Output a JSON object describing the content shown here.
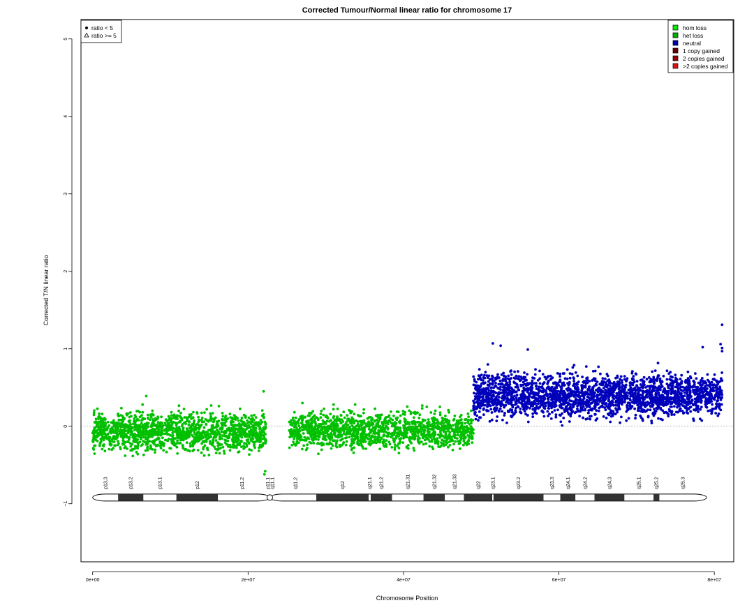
{
  "chart_data": {
    "type": "scatter",
    "title": "Corrected Tumour/Normal linear ratio for chromosome  17",
    "xlabel": "Chromosome Position",
    "ylabel": "Corrected T/N linear ratio",
    "xlim": [
      -1500000,
      82500000
    ],
    "ylim": [
      -1.75,
      5.25
    ],
    "x_ticks": [
      0,
      20000000,
      40000000,
      60000000,
      80000000
    ],
    "x_tick_labels": [
      "0e+00",
      "2e+07",
      "4e+07",
      "6e+07",
      "8e+07"
    ],
    "y_ticks": [
      -1,
      0,
      1,
      2,
      3,
      4,
      5
    ],
    "y_tick_labels": [
      "−1",
      "0",
      "1",
      "2",
      "3",
      "4",
      "5"
    ],
    "reference_line_y": 0,
    "shape_legend": {
      "placement": "top-left",
      "items": [
        {
          "label": "ratio < 5",
          "shape": "filled-circle"
        },
        {
          "label": "ratio >= 5",
          "shape": "open-triangle"
        }
      ]
    },
    "color_legend": {
      "placement": "top-right",
      "items": [
        {
          "label": "hom loss",
          "color": "#00ee00"
        },
        {
          "label": "het loss",
          "color": "#00b000"
        },
        {
          "label": "neutral",
          "color": "#0000aa"
        },
        {
          "label": "1 copy gained",
          "color": "#6b0000"
        },
        {
          "label": "2 copies gained",
          "color": "#990000"
        },
        {
          "label": ">2 copies gained",
          "color": "#dd1111"
        }
      ]
    },
    "series": [
      {
        "name": "het loss",
        "color": "#00c000",
        "segments": [
          {
            "x_range": [
              0,
              22300000
            ],
            "median": -0.07,
            "spread": 0.14,
            "n": 1500
          },
          {
            "x_range": [
              25300000,
              49000000
            ],
            "median": -0.05,
            "spread": 0.13,
            "n": 1450
          }
        ],
        "outliers": [
          [
            6900000,
            0.39
          ],
          [
            22000000,
            0.45
          ],
          [
            22100000,
            -0.62
          ],
          [
            22200000,
            -0.58
          ],
          [
            27000000,
            0.3
          ],
          [
            31000000,
            0.28
          ],
          [
            43000000,
            0.25
          ]
        ]
      },
      {
        "name": "neutral",
        "color": "#0000bb",
        "segments": [
          {
            "x_range": [
              49000000,
              81000000
            ],
            "median": 0.4,
            "spread": 0.16,
            "n": 2400
          }
        ],
        "outliers": [
          [
            51500000,
            1.07
          ],
          [
            52500000,
            1.04
          ],
          [
            56000000,
            0.99
          ],
          [
            78500000,
            1.02
          ],
          [
            81000000,
            1.31
          ],
          [
            80800000,
            1.06
          ],
          [
            81000000,
            1.01
          ],
          [
            81000000,
            0.97
          ]
        ]
      }
    ],
    "ideogram": {
      "y": -0.92,
      "bands": [
        {
          "name": "p13.3",
          "start": 0,
          "end": 3300000,
          "stain": "gneg"
        },
        {
          "name": "p13.2",
          "start": 3300000,
          "end": 6500000,
          "stain": "gpos"
        },
        {
          "name": "p13.1",
          "start": 6500000,
          "end": 10800000,
          "stain": "gneg"
        },
        {
          "name": "p12",
          "start": 10800000,
          "end": 16100000,
          "stain": "gpos"
        },
        {
          "name": "p11.2",
          "start": 16100000,
          "end": 22300000,
          "stain": "gneg"
        },
        {
          "name": "p11.1",
          "start": 22300000,
          "end": 22800000,
          "stain": "acen"
        },
        {
          "name": "q11.1",
          "start": 22800000,
          "end": 23400000,
          "stain": "acen"
        },
        {
          "name": "q11.2",
          "start": 23400000,
          "end": 28800000,
          "stain": "gneg"
        },
        {
          "name": "q12",
          "start": 28800000,
          "end": 35500000,
          "stain": "gpos"
        },
        {
          "name": "q21.1",
          "start": 35500000,
          "end": 35800000,
          "stain": "gneg"
        },
        {
          "name": "q21.2",
          "start": 35800000,
          "end": 38500000,
          "stain": "gpos"
        },
        {
          "name": "q21.31",
          "start": 38500000,
          "end": 42600000,
          "stain": "gneg"
        },
        {
          "name": "q21.32",
          "start": 42600000,
          "end": 45300000,
          "stain": "gpos"
        },
        {
          "name": "q21.33",
          "start": 45300000,
          "end": 47800000,
          "stain": "gneg"
        },
        {
          "name": "q22",
          "start": 47800000,
          "end": 51400000,
          "stain": "gpos"
        },
        {
          "name": "q23.1",
          "start": 51400000,
          "end": 51600000,
          "stain": "gneg"
        },
        {
          "name": "q23.2",
          "start": 51600000,
          "end": 58000000,
          "stain": "gpos"
        },
        {
          "name": "q23.3",
          "start": 58000000,
          "end": 60200000,
          "stain": "gneg"
        },
        {
          "name": "q24.1",
          "start": 60200000,
          "end": 62100000,
          "stain": "gpos"
        },
        {
          "name": "q24.2",
          "start": 62100000,
          "end": 64600000,
          "stain": "gneg"
        },
        {
          "name": "q24.3",
          "start": 64600000,
          "end": 68400000,
          "stain": "gpos"
        },
        {
          "name": "q25.1",
          "start": 68400000,
          "end": 72200000,
          "stain": "gneg"
        },
        {
          "name": "q25.2",
          "start": 72200000,
          "end": 72900000,
          "stain": "gpos"
        },
        {
          "name": "q25.3",
          "start": 72900000,
          "end": 79000000,
          "stain": "gneg"
        }
      ]
    }
  }
}
